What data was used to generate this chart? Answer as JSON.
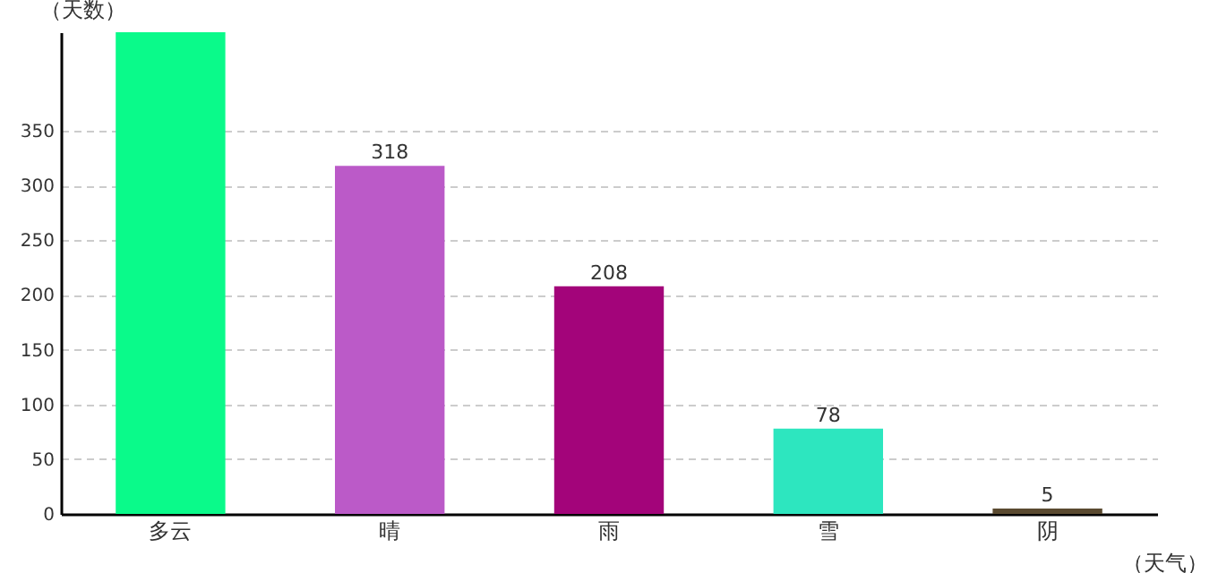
{
  "chart_data": {
    "type": "bar",
    "xlabel": "（天气）",
    "ylabel": "（天数）",
    "categories": [
      "多云",
      "晴",
      "雨",
      "雪",
      "阴"
    ],
    "values": [
      440,
      318,
      208,
      78,
      5
    ],
    "value_labels": [
      null,
      "318",
      "208",
      "78",
      "5"
    ],
    "colors": [
      "#0afa8a",
      "#bb5ac8",
      "#a3047a",
      "#2de6bf",
      "#5a4a30"
    ],
    "ylim": [
      0,
      440
    ],
    "yticks": [
      0,
      50,
      100,
      150,
      200,
      250,
      300,
      350
    ],
    "grid": "y"
  }
}
